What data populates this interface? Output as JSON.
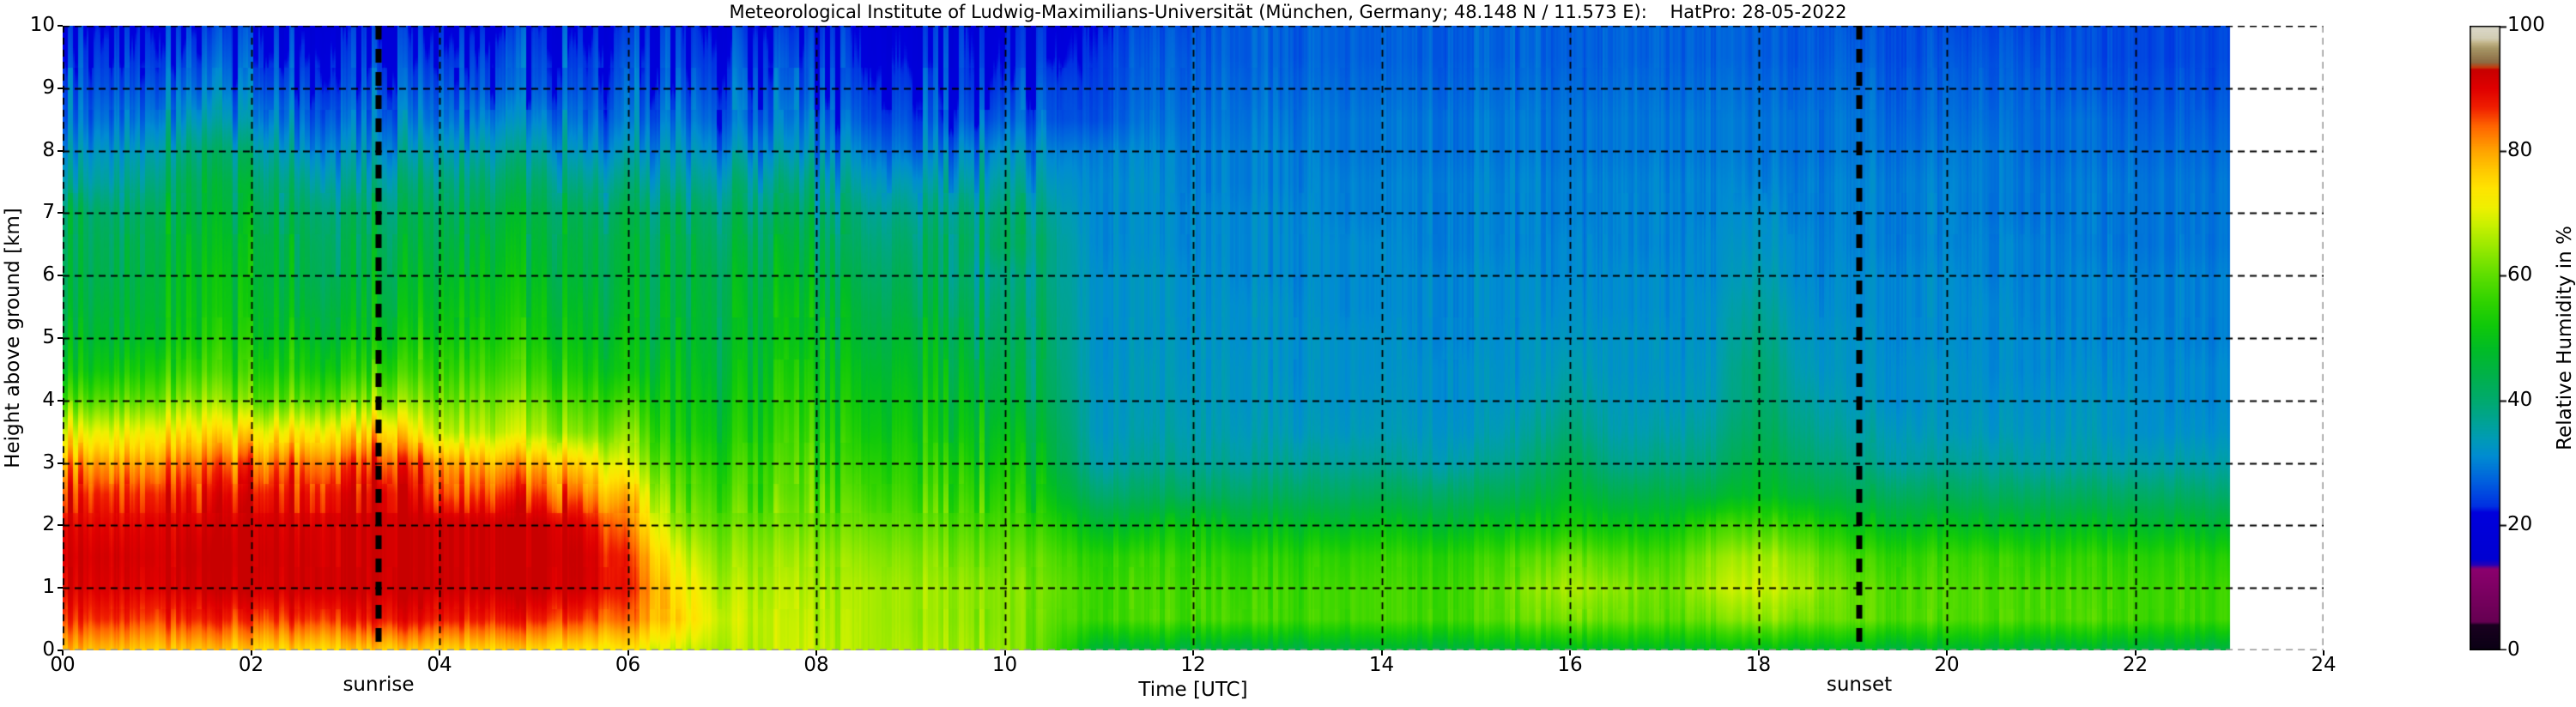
{
  "title": "Meteorological Institute of Ludwig-Maximilians-Universität (München, Germany; 48.148 N / 11.573 E):    HatPro: 28-05-2022",
  "x_axis_label": "Time [UTC]",
  "y_axis_label": "Height above ground [km]",
  "colorbar_label": "Relative Humidity in %",
  "sunrise_label": "sunrise",
  "sunset_label": "sunset",
  "colors": {
    "background": "#ffffff",
    "grid_line": "#000000",
    "sun_line": "#000000",
    "frame_edge": "#999999",
    "text": "#000000"
  },
  "chart_data": {
    "type": "heatmap",
    "title": "Meteorological Institute of Ludwig-Maximilians-Universität (München, Germany; 48.148 N / 11.573 E):    HatPro: 28-05-2022",
    "xlabel": "Time [UTC]",
    "ylabel": "Height above ground [km]",
    "xlim": [
      0,
      24
    ],
    "ylim": [
      0,
      10
    ],
    "grid": true,
    "x_ticks": {
      "values": [
        0,
        2,
        4,
        6,
        8,
        10,
        12,
        14,
        16,
        18,
        20,
        22,
        24
      ],
      "labels": [
        "00",
        "02",
        "04",
        "06",
        "08",
        "10",
        "12",
        "14",
        "16",
        "18",
        "20",
        "22",
        "24"
      ]
    },
    "y_ticks": {
      "values": [
        0,
        1,
        2,
        3,
        4,
        5,
        6,
        7,
        8,
        9,
        10
      ],
      "labels": [
        "0",
        "1",
        "2",
        "3",
        "4",
        "5",
        "6",
        "7",
        "8",
        "9",
        "10"
      ]
    },
    "sunrise_time": 3.35,
    "sunset_time": 19.07,
    "data_end_time": 23.0,
    "colorbar": {
      "label": "Relative Humidity in %",
      "min": 0,
      "max": 100,
      "ticks": [
        0,
        20,
        40,
        60,
        80,
        100
      ]
    },
    "colormap_stops": [
      [
        0,
        "#0a0014"
      ],
      [
        4,
        "#1a0020"
      ],
      [
        4.5,
        "#660052"
      ],
      [
        13,
        "#8c006e"
      ],
      [
        13.6,
        "#2a00b4"
      ],
      [
        14.5,
        "#0000d2"
      ],
      [
        22,
        "#0000dc"
      ],
      [
        23,
        "#0030e2"
      ],
      [
        27,
        "#0060de"
      ],
      [
        31,
        "#008cd2"
      ],
      [
        34,
        "#009cb4"
      ],
      [
        37,
        "#00a490"
      ],
      [
        40,
        "#00aa6e"
      ],
      [
        44,
        "#00b14a"
      ],
      [
        48,
        "#00bc28"
      ],
      [
        52,
        "#10c90a"
      ],
      [
        56,
        "#32d400"
      ],
      [
        60,
        "#5ede00"
      ],
      [
        64,
        "#92e800"
      ],
      [
        68,
        "#c8f000"
      ],
      [
        71,
        "#f0f000"
      ],
      [
        74,
        "#ffe400"
      ],
      [
        77,
        "#ffc800"
      ],
      [
        80,
        "#ffa400"
      ],
      [
        84,
        "#ff6400"
      ],
      [
        87,
        "#f01e00"
      ],
      [
        90,
        "#e00000"
      ],
      [
        93,
        "#c80000"
      ],
      [
        93.4,
        "#c23c10"
      ],
      [
        94.2,
        "#8c6c44"
      ],
      [
        96.5,
        "#a89868"
      ],
      [
        97.3,
        "#c2b488"
      ],
      [
        98,
        "#d2cdb4"
      ],
      [
        100,
        "#dcdacc"
      ]
    ],
    "heatmap": {
      "t_start": 0,
      "t_step": 0.5,
      "h_start": 0,
      "h_step": 0.5,
      "units": "percent_rh",
      "rows_bottom_to_top": [
        [
          78,
          78,
          77,
          77,
          76,
          76,
          77,
          77,
          76,
          76,
          75,
          74,
          73,
          68,
          66,
          67,
          67,
          66,
          66,
          65,
          64,
          58,
          46,
          45,
          46,
          45,
          45,
          45,
          46,
          45,
          46,
          47,
          48,
          47,
          47,
          48,
          49,
          48,
          47,
          46,
          46,
          46,
          45,
          45,
          45,
          45,
          44
        ],
        [
          86,
          87,
          86,
          87,
          86,
          87,
          88,
          89,
          88,
          88,
          87,
          86,
          83,
          76,
          68,
          67,
          66,
          66,
          65,
          64,
          63,
          60,
          57,
          57,
          58,
          58,
          57,
          57,
          58,
          57,
          58,
          60,
          62,
          60,
          59,
          61,
          64,
          62,
          60,
          59,
          58,
          58,
          58,
          58,
          57,
          57,
          57
        ],
        [
          90,
          91,
          91,
          92,
          92,
          93,
          93,
          93,
          93,
          93,
          93,
          92,
          87,
          74,
          66,
          66,
          65,
          66,
          65,
          64,
          63,
          61,
          57,
          57,
          58,
          57,
          57,
          57,
          58,
          57,
          58,
          62,
          66,
          63,
          60,
          66,
          69,
          66,
          60,
          59,
          58,
          58,
          58,
          57,
          57,
          57,
          57
        ],
        [
          91,
          92,
          92,
          93,
          93,
          93,
          93,
          93,
          93,
          93,
          93,
          93,
          86,
          70,
          63,
          64,
          63,
          64,
          63,
          62,
          61,
          59,
          55,
          55,
          56,
          55,
          55,
          55,
          56,
          55,
          56,
          58,
          62,
          58,
          57,
          63,
          66,
          63,
          57,
          56,
          56,
          56,
          55,
          55,
          55,
          55,
          54
        ],
        [
          90,
          90,
          91,
          91,
          92,
          92,
          93,
          93,
          93,
          93,
          93,
          91,
          82,
          64,
          60,
          61,
          60,
          61,
          60,
          59,
          58,
          55,
          48,
          48,
          52,
          48,
          49,
          48,
          50,
          48,
          49,
          50,
          53,
          50,
          50,
          56,
          58,
          56,
          50,
          49,
          49,
          48,
          48,
          48,
          48,
          48,
          47
        ],
        [
          87,
          87,
          88,
          88,
          89,
          90,
          91,
          92,
          86,
          87,
          86,
          84,
          76,
          60,
          57,
          58,
          58,
          58,
          57,
          56,
          55,
          50,
          40,
          41,
          42,
          41,
          42,
          41,
          43,
          41,
          42,
          43,
          48,
          43,
          44,
          45,
          49,
          46,
          43,
          42,
          42,
          41,
          41,
          41,
          41,
          41,
          40
        ],
        [
          80,
          81,
          82,
          83,
          83,
          85,
          86,
          87,
          82,
          80,
          79,
          76,
          68,
          56,
          54,
          56,
          56,
          55,
          55,
          53,
          52,
          46,
          35,
          36,
          37,
          36,
          37,
          36,
          37,
          35,
          36,
          38,
          44,
          37,
          38,
          39,
          46,
          41,
          38,
          36,
          36,
          36,
          35,
          35,
          35,
          35,
          35
        ],
        [
          70,
          71,
          73,
          74,
          73,
          75,
          76,
          77,
          68,
          68,
          66,
          63,
          62,
          52,
          51,
          54,
          54,
          52,
          53,
          50,
          49,
          44,
          33,
          34,
          35,
          34,
          34,
          33,
          34,
          33,
          33,
          35,
          40,
          34,
          35,
          36,
          43,
          38,
          35,
          34,
          33,
          33,
          33,
          33,
          32,
          32,
          32
        ],
        [
          58,
          60,
          62,
          64,
          60,
          62,
          63,
          64,
          62,
          63,
          61,
          58,
          56,
          50,
          49,
          52,
          52,
          50,
          51,
          48,
          46,
          42,
          33,
          33,
          34,
          33,
          33,
          32,
          33,
          32,
          32,
          33,
          37,
          33,
          33,
          34,
          41,
          36,
          33,
          32,
          32,
          32,
          32,
          32,
          32,
          31,
          31
        ],
        [
          50,
          52,
          55,
          57,
          54,
          55,
          55,
          56,
          57,
          58,
          56,
          53,
          50,
          48,
          47,
          50,
          50,
          48,
          49,
          46,
          44,
          41,
          32,
          33,
          33,
          33,
          32,
          32,
          32,
          32,
          32,
          32,
          35,
          32,
          32,
          33,
          41,
          34,
          32,
          32,
          32,
          31,
          31,
          31,
          31,
          31,
          31
        ],
        [
          47,
          48,
          50,
          53,
          51,
          51,
          50,
          51,
          53,
          54,
          52,
          50,
          48,
          46,
          46,
          48,
          48,
          46,
          47,
          44,
          42,
          40,
          32,
          32,
          33,
          32,
          32,
          32,
          32,
          31,
          31,
          32,
          33,
          32,
          32,
          32,
          39,
          33,
          32,
          31,
          31,
          31,
          31,
          30,
          31,
          30,
          30
        ],
        [
          45,
          46,
          48,
          51,
          49,
          48,
          47,
          48,
          50,
          52,
          50,
          48,
          46,
          45,
          45,
          47,
          46,
          44,
          45,
          42,
          40,
          39,
          32,
          32,
          32,
          32,
          32,
          31,
          31,
          31,
          31,
          31,
          32,
          31,
          31,
          32,
          37,
          32,
          31,
          31,
          31,
          31,
          30,
          30,
          30,
          30,
          30
        ],
        [
          44,
          44,
          47,
          50,
          48,
          46,
          45,
          46,
          48,
          50,
          48,
          46,
          45,
          44,
          44,
          45,
          44,
          42,
          43,
          40,
          38,
          38,
          32,
          32,
          32,
          31,
          31,
          31,
          31,
          31,
          31,
          31,
          31,
          31,
          31,
          31,
          35,
          31,
          31,
          31,
          31,
          30,
          30,
          30,
          30,
          30,
          30
        ],
        [
          43,
          43,
          46,
          48,
          47,
          45,
          44,
          44,
          46,
          48,
          46,
          45,
          44,
          43,
          42,
          43,
          42,
          40,
          41,
          40,
          42,
          38,
          31,
          31,
          31,
          31,
          31,
          31,
          31,
          30,
          30,
          30,
          31,
          30,
          30,
          31,
          33,
          31,
          30,
          30,
          30,
          30,
          30,
          29,
          29,
          29,
          29
        ],
        [
          42,
          41,
          44,
          46,
          45,
          43,
          42,
          42,
          44,
          45,
          44,
          43,
          42,
          41,
          40,
          40,
          39,
          38,
          38,
          38,
          40,
          36,
          31,
          31,
          31,
          31,
          31,
          30,
          30,
          30,
          30,
          30,
          30,
          30,
          30,
          30,
          32,
          30,
          30,
          30,
          30,
          29,
          29,
          29,
          29,
          29,
          29
        ],
        [
          36,
          36,
          40,
          44,
          42,
          39,
          37,
          38,
          40,
          41,
          40,
          38,
          37,
          36,
          36,
          36,
          35,
          34,
          34,
          34,
          36,
          33,
          31,
          31,
          30,
          30,
          30,
          30,
          30,
          30,
          30,
          30,
          30,
          30,
          30,
          30,
          30,
          30,
          30,
          30,
          30,
          29,
          29,
          29,
          29,
          29,
          29
        ],
        [
          32,
          33,
          36,
          40,
          38,
          34,
          33,
          33,
          35,
          36,
          35,
          33,
          32,
          32,
          31,
          31,
          30,
          30,
          29,
          30,
          32,
          30,
          30,
          30,
          30,
          30,
          30,
          29,
          29,
          29,
          29,
          29,
          29,
          29,
          29,
          29,
          29,
          29,
          29,
          29,
          29,
          29,
          28,
          28,
          28,
          28,
          28
        ],
        [
          28,
          29,
          31,
          34,
          32,
          30,
          29,
          29,
          30,
          31,
          30,
          29,
          28,
          28,
          27,
          27,
          27,
          26,
          26,
          25,
          27,
          26,
          26,
          28,
          29,
          29,
          29,
          29,
          29,
          29,
          29,
          29,
          29,
          29,
          29,
          29,
          29,
          29,
          29,
          28,
          28,
          28,
          28,
          28,
          27,
          27,
          27
        ],
        [
          26,
          26,
          28,
          29,
          28,
          27,
          26,
          26,
          27,
          27,
          26,
          26,
          26,
          25,
          25,
          25,
          24,
          24,
          24,
          23,
          24,
          25,
          25,
          27,
          28,
          28,
          28,
          28,
          28,
          28,
          28,
          28,
          28,
          28,
          28,
          28,
          28,
          28,
          28,
          27,
          27,
          27,
          27,
          26,
          26,
          26,
          26
        ],
        [
          24,
          24,
          25,
          26,
          25,
          24,
          24,
          24,
          24,
          25,
          24,
          24,
          24,
          23,
          23,
          23,
          23,
          22,
          22,
          22,
          22,
          22,
          24,
          26,
          27,
          27,
          27,
          27,
          27,
          27,
          27,
          27,
          27,
          27,
          27,
          27,
          27,
          27,
          27,
          26,
          26,
          26,
          26,
          25,
          25,
          25,
          25
        ],
        [
          22,
          22,
          23,
          23,
          23,
          22,
          22,
          22,
          22,
          22,
          22,
          22,
          22,
          22,
          21,
          21,
          21,
          21,
          21,
          21,
          21,
          21,
          23,
          25,
          26,
          27,
          27,
          27,
          27,
          27,
          27,
          27,
          27,
          27,
          27,
          27,
          27,
          27,
          26,
          26,
          25,
          25,
          25,
          25,
          25,
          25,
          25
        ]
      ]
    }
  }
}
